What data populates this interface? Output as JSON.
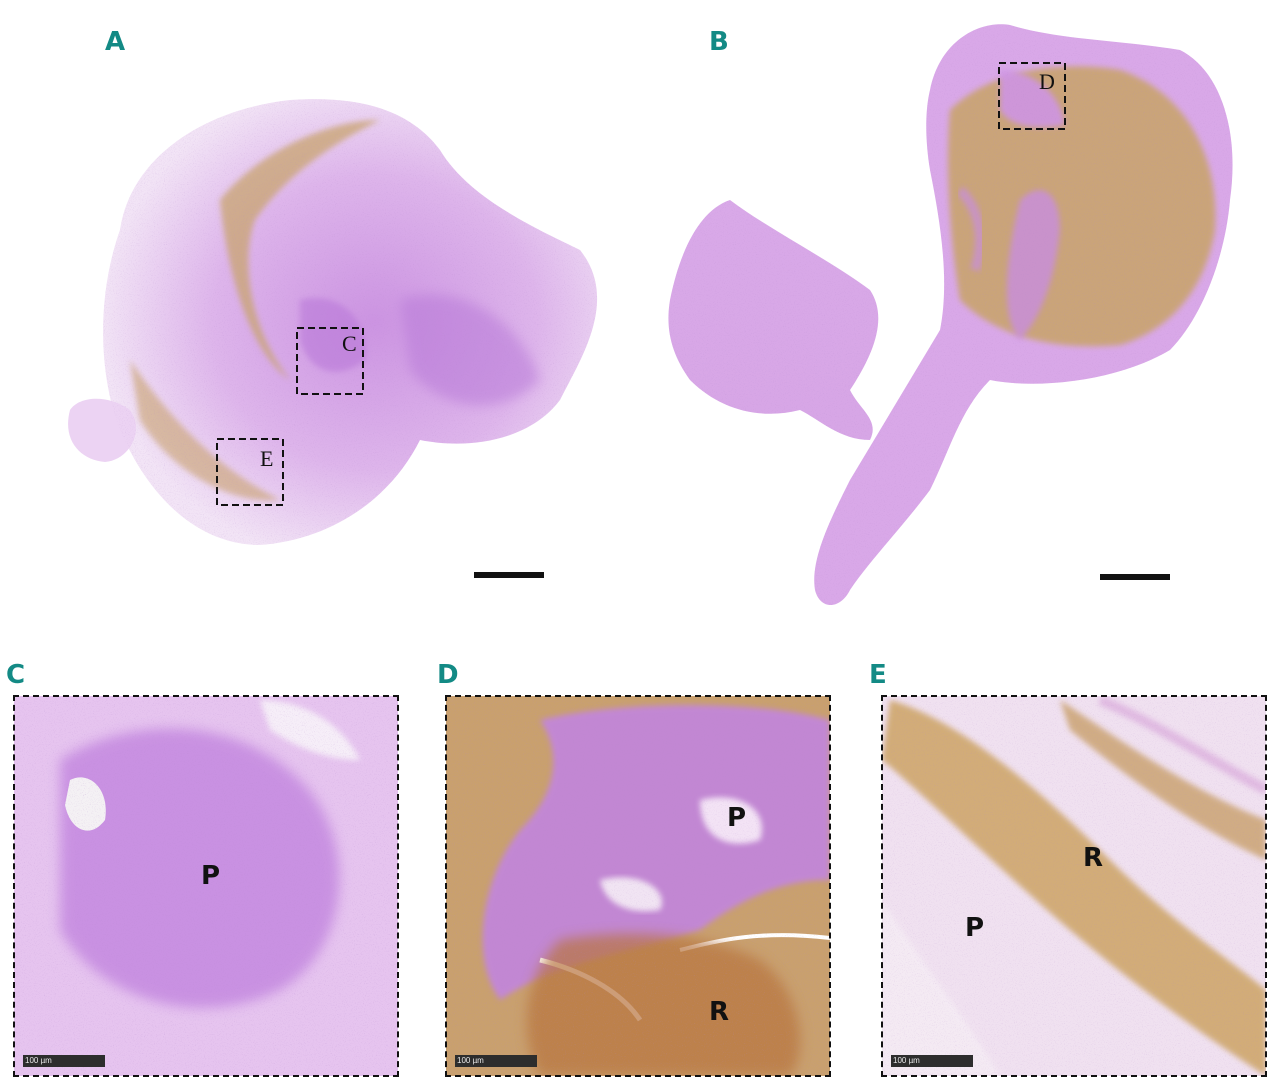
{
  "panels": {
    "A": {
      "letter": "A",
      "boxes": [
        "C",
        "E"
      ]
    },
    "B": {
      "letter": "B",
      "boxes": [
        "D"
      ]
    },
    "C": {
      "letter": "C",
      "regions": [
        "P"
      ],
      "scale_text": "100 µm"
    },
    "D": {
      "letter": "D",
      "regions": [
        "P",
        "R"
      ],
      "scale_text": "100 µm"
    },
    "E": {
      "letter": "E",
      "regions": [
        "P",
        "R"
      ],
      "scale_text": "100 µm"
    }
  },
  "colors": {
    "panel_letter": "#138a85",
    "stain_purple": "#c98ee0",
    "stain_purple_dark": "#a865d6",
    "erythrocyte_brown": "#c8a36a",
    "dashed_box": "#111111"
  }
}
